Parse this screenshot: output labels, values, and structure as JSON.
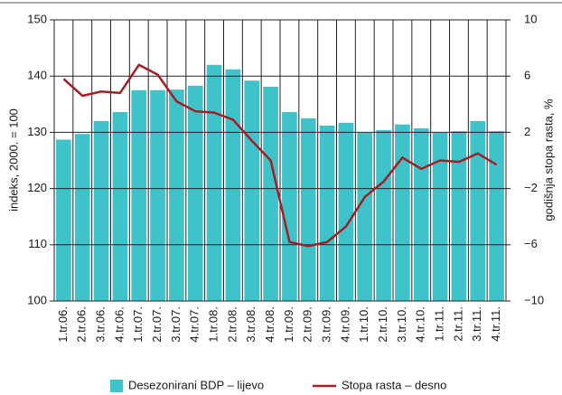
{
  "chart_data": {
    "type": "bar_line",
    "ylabel": "indeks, 2000. = 100",
    "y2label": "godišnja stopa rasta, %",
    "categories": [
      "1.tr.06.",
      "2.tr.06.",
      "3.tr.06.",
      "4.tr.06.",
      "1.tr.07.",
      "2.tr.07.",
      "3.tr.07.",
      "4.tr.07.",
      "1.tr.08.",
      "2.tr.08.",
      "3.tr.08.",
      "4.tr.08.",
      "1.tr.09.",
      "2.tr.09.",
      "3.tr.09.",
      "4.tr.09.",
      "1.tr.10.",
      "2.tr.10.",
      "3.tr.10.",
      "4.tr.10.",
      "1.tr.11.",
      "2.tr.11.",
      "3.tr.11.",
      "4.tr.11."
    ],
    "series": [
      {
        "name": "Desezonirani BDP – lijevo",
        "type": "bar",
        "color": "#3ec3cb",
        "values": [
          128.7,
          129.7,
          132.0,
          133.6,
          137.5,
          137.5,
          137.6,
          138.3,
          142.0,
          141.2,
          139.2,
          138.1,
          133.6,
          132.5,
          131.2,
          131.7,
          129.9,
          130.4,
          131.4,
          130.7,
          129.9,
          130.2,
          132.0,
          130.2
        ]
      },
      {
        "name": "Stopa rasta – desno",
        "type": "line",
        "axis": "y2",
        "color": "#a51e24",
        "values": [
          5.8,
          4.6,
          4.9,
          4.8,
          6.8,
          6.1,
          4.2,
          3.5,
          3.4,
          2.9,
          1.4,
          0.0,
          -5.8,
          -6.1,
          -5.8,
          -4.7,
          -2.6,
          -1.5,
          0.2,
          -0.6,
          0.0,
          -0.1,
          0.5,
          -0.3
        ]
      }
    ],
    "ylim": [
      100,
      150
    ],
    "yticks": [
      100,
      110,
      120,
      130,
      140,
      150
    ],
    "y2lim": [
      -10,
      10
    ],
    "y2ticks": [
      {
        "value": -10,
        "label": "−10"
      },
      {
        "value": -6,
        "label": "−6"
      },
      {
        "value": -2,
        "label": "−2"
      },
      2,
      6,
      10
    ],
    "grid": true,
    "legend": "bottom"
  }
}
